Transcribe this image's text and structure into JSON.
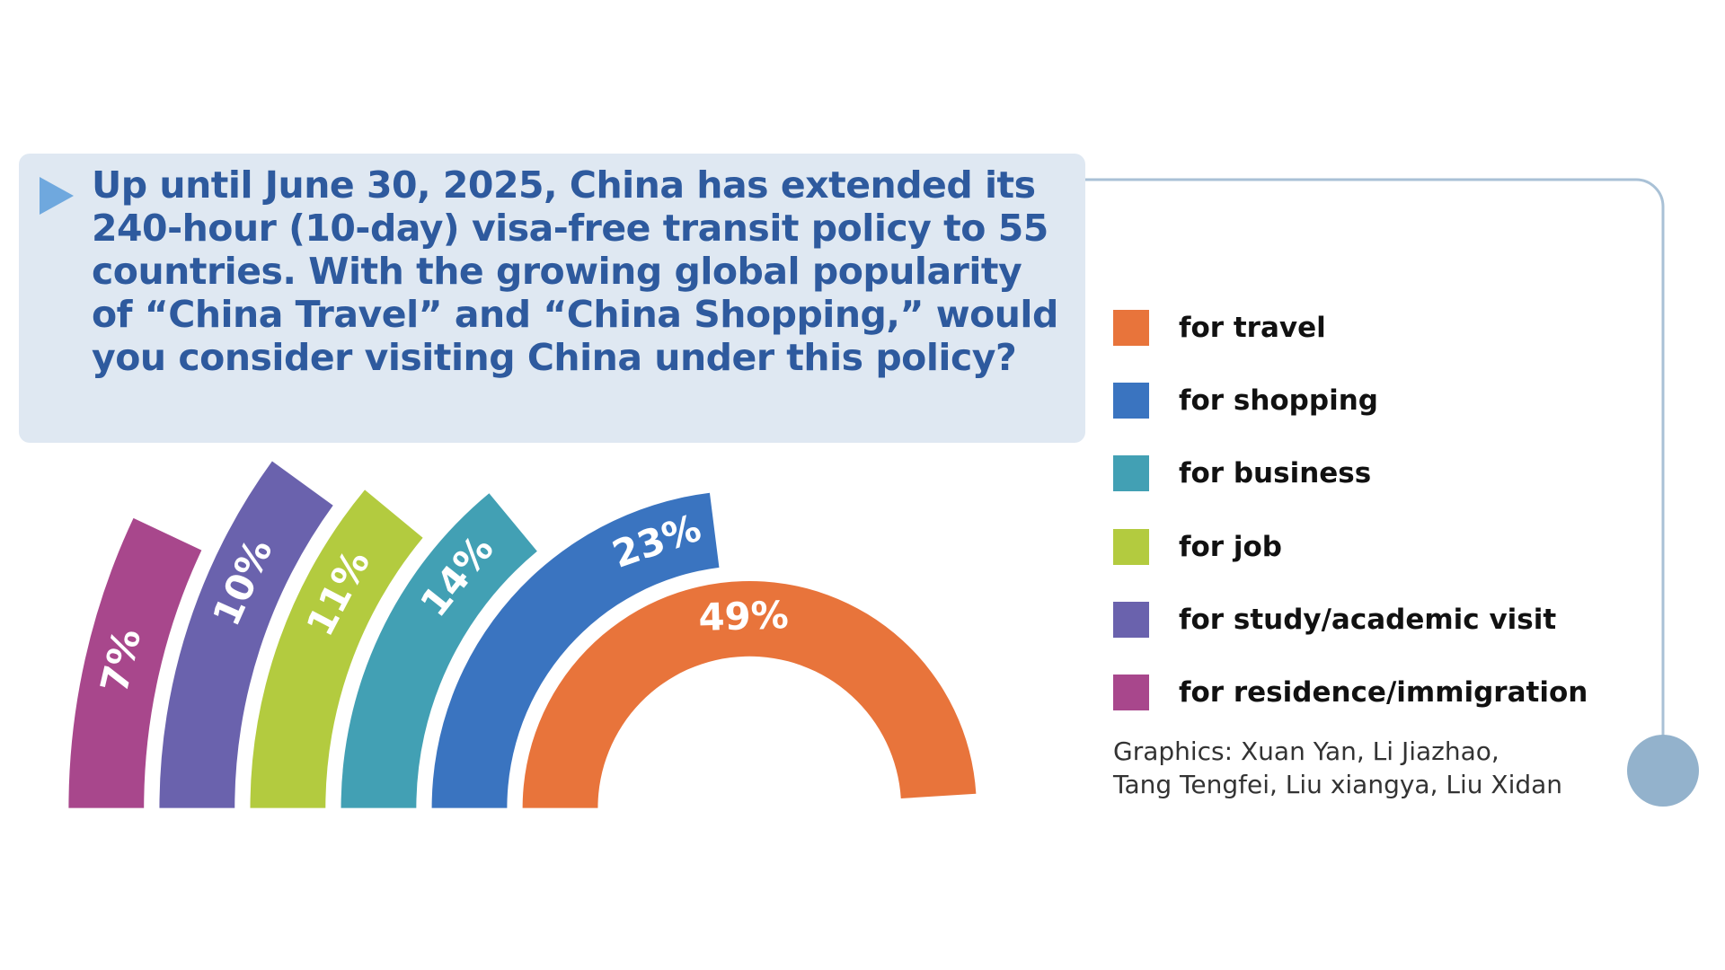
{
  "chart_data": {
    "type": "radial_bar",
    "title": "Up until June 30, 2025, China has extended its 240-hour (10-day) visa-free transit policy to 55 countries. With the growing global popularity of “China Travel” and “China Shopping,” would you consider visiting China under this policy?",
    "categories": [
      "for travel",
      "for shopping",
      "for business",
      "for job",
      "for study/academic visit",
      "for residence/immigration"
    ],
    "values": [
      49,
      23,
      14,
      11,
      10,
      7
    ],
    "value_labels": [
      "49%",
      "23%",
      "14%",
      "11%",
      "10%",
      "7%"
    ],
    "colors": [
      "#e8743b",
      "#3a74c0",
      "#42a0b4",
      "#b3cb3f",
      "#6a62ad",
      "#a8478c"
    ],
    "credit": [
      "Graphics: Xuan Yan, Li Jiazhao,",
      "Tang Tengfei, Liu xiangya, Liu Xidan"
    ]
  }
}
